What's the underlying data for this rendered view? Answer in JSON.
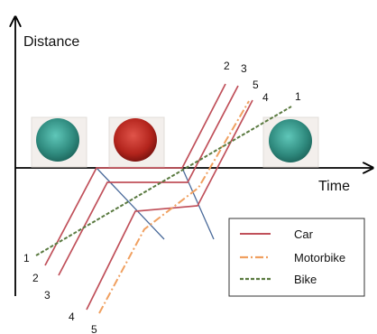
{
  "axes": {
    "y_label": "Distance",
    "x_label": "Time"
  },
  "lights": [
    {
      "name": "traffic-light-1",
      "state": "green"
    },
    {
      "name": "traffic-light-2",
      "state": "red"
    },
    {
      "name": "traffic-light-3",
      "state": "green"
    }
  ],
  "vehicle_numbers": {
    "top": [
      "2",
      "3",
      "5",
      "4",
      "1"
    ],
    "bottom": [
      "1",
      "2",
      "3",
      "4",
      "5"
    ]
  },
  "legend": {
    "items": [
      {
        "label": "Car",
        "style": "solid",
        "color": "#c0505a"
      },
      {
        "label": "Motorbike",
        "style": "dash-dot",
        "color": "#f0a060"
      },
      {
        "label": "Bike",
        "style": "dashed",
        "color": "#5a7a40"
      }
    ]
  },
  "colors": {
    "car": "#c0505a",
    "motorbike": "#f0a060",
    "bike": "#5a7a40",
    "shockwave": "#4a6a9a",
    "green_light": "#2f8a7e",
    "red_light": "#b3241c",
    "axis": "#000000"
  }
}
